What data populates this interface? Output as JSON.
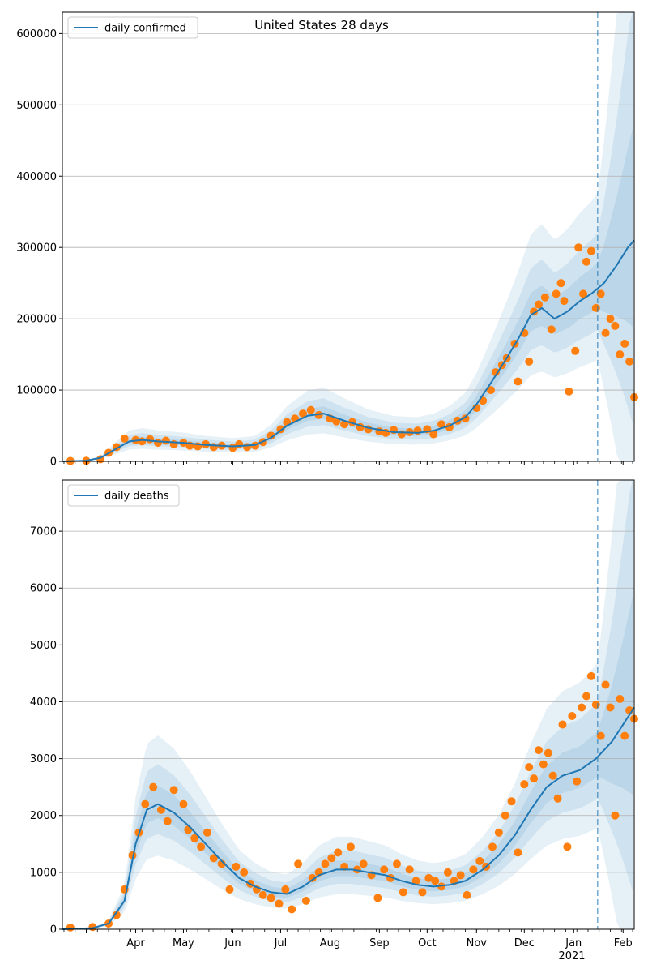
{
  "figure": {
    "title": "United States 28 days",
    "colors": {
      "model_line": "#1f77b4",
      "band": "#1f77b4",
      "observations": "#ff7f0e",
      "forecast_marker": "#1f77b4",
      "grid": "#b0b0b0"
    }
  },
  "chart_data": [
    {
      "type": "line",
      "name": "confirmed-panel",
      "x_type": "date",
      "xlim": [
        "2020-02-15",
        "2021-02-08"
      ],
      "ylim": [
        0,
        630000
      ],
      "yticks": [
        0,
        100000,
        200000,
        300000,
        400000,
        500000,
        600000
      ],
      "grid": "horizontal",
      "legend_position": "top-left",
      "forecast_start": "2021-01-16",
      "series": [
        {
          "name": "daily confirmed",
          "kind": "line",
          "x": [
            "2020-02-15",
            "2020-03-01",
            "2020-03-10",
            "2020-03-20",
            "2020-03-28",
            "2020-04-05",
            "2020-04-15",
            "2020-05-01",
            "2020-05-15",
            "2020-06-01",
            "2020-06-15",
            "2020-06-25",
            "2020-07-05",
            "2020-07-18",
            "2020-07-28",
            "2020-08-10",
            "2020-08-25",
            "2020-09-10",
            "2020-09-25",
            "2020-10-05",
            "2020-10-15",
            "2020-10-25",
            "2020-11-01",
            "2020-11-10",
            "2020-11-20",
            "2020-11-28",
            "2020-12-05",
            "2020-12-12",
            "2020-12-20",
            "2020-12-28",
            "2021-01-05",
            "2021-01-12",
            "2021-01-20",
            "2021-01-28",
            "2021-02-04",
            "2021-02-08"
          ],
          "y": [
            0,
            1000,
            5000,
            18000,
            28000,
            30000,
            28000,
            26000,
            23000,
            21000,
            23000,
            33000,
            50000,
            64000,
            67000,
            57000,
            47000,
            41000,
            40000,
            43000,
            50000,
            62000,
            80000,
            110000,
            145000,
            175000,
            205000,
            215000,
            200000,
            210000,
            225000,
            235000,
            250000,
            275000,
            300000,
            310000
          ]
        },
        {
          "name": "",
          "kind": "scatter",
          "x": [
            "2020-02-20",
            "2020-03-01",
            "2020-03-10",
            "2020-03-15",
            "2020-03-20",
            "2020-03-25",
            "2020-04-01",
            "2020-04-05",
            "2020-04-10",
            "2020-04-15",
            "2020-04-20",
            "2020-04-25",
            "2020-05-01",
            "2020-05-05",
            "2020-05-10",
            "2020-05-15",
            "2020-05-20",
            "2020-05-25",
            "2020-06-01",
            "2020-06-05",
            "2020-06-10",
            "2020-06-15",
            "2020-06-20",
            "2020-06-25",
            "2020-07-01",
            "2020-07-05",
            "2020-07-10",
            "2020-07-15",
            "2020-07-20",
            "2020-07-25",
            "2020-08-01",
            "2020-08-05",
            "2020-08-10",
            "2020-08-15",
            "2020-08-20",
            "2020-08-25",
            "2020-09-01",
            "2020-09-05",
            "2020-09-10",
            "2020-09-15",
            "2020-09-20",
            "2020-09-25",
            "2020-10-01",
            "2020-10-05",
            "2020-10-10",
            "2020-10-15",
            "2020-10-20",
            "2020-10-25",
            "2020-11-01",
            "2020-11-05",
            "2020-11-10",
            "2020-11-13",
            "2020-11-17",
            "2020-11-20",
            "2020-11-25",
            "2020-11-27",
            "2020-12-01",
            "2020-12-04",
            "2020-12-07",
            "2020-12-10",
            "2020-12-14",
            "2020-12-18",
            "2020-12-21",
            "2020-12-24",
            "2020-12-26",
            "2020-12-29",
            "2021-01-02",
            "2021-01-04",
            "2021-01-07",
            "2021-01-09",
            "2021-01-12",
            "2021-01-15",
            "2021-01-18",
            "2021-01-21",
            "2021-01-24",
            "2021-01-27",
            "2021-01-30",
            "2021-02-02",
            "2021-02-05",
            "2021-02-08"
          ],
          "y": [
            500,
            800,
            3000,
            12000,
            20000,
            32000,
            30000,
            28000,
            31000,
            26000,
            29000,
            24000,
            26000,
            22000,
            21000,
            24000,
            20000,
            22000,
            19000,
            24000,
            20000,
            22000,
            27000,
            36000,
            45000,
            55000,
            60000,
            67000,
            72000,
            65000,
            60000,
            56000,
            52000,
            55000,
            48000,
            45000,
            42000,
            40000,
            44000,
            38000,
            41000,
            43000,
            45000,
            38000,
            52000,
            48000,
            57000,
            60000,
            75000,
            85000,
            100000,
            125000,
            135000,
            145000,
            165000,
            112000,
            180000,
            140000,
            210000,
            220000,
            230000,
            185000,
            235000,
            250000,
            225000,
            98000,
            155000,
            300000,
            235000,
            280000,
            295000,
            215000,
            235000,
            180000,
            200000,
            190000,
            150000,
            165000,
            140000,
            90000
          ]
        }
      ]
    },
    {
      "type": "line",
      "name": "deaths-panel",
      "x_type": "date",
      "xlim": [
        "2020-02-15",
        "2021-02-08"
      ],
      "ylim": [
        0,
        7900
      ],
      "yticks": [
        0,
        1000,
        2000,
        3000,
        4000,
        5000,
        6000,
        7000
      ],
      "grid": "horizontal",
      "legend_position": "top-left",
      "forecast_start": "2021-01-16",
      "xticks": [
        {
          "x": "2020-04-01",
          "label": "Apr"
        },
        {
          "x": "2020-05-01",
          "label": "May"
        },
        {
          "x": "2020-06-01",
          "label": "Jun"
        },
        {
          "x": "2020-07-01",
          "label": "Jul"
        },
        {
          "x": "2020-08-01",
          "label": "Aug"
        },
        {
          "x": "2020-09-01",
          "label": "Sep"
        },
        {
          "x": "2020-10-01",
          "label": "Oct"
        },
        {
          "x": "2020-11-01",
          "label": "Nov"
        },
        {
          "x": "2020-12-01",
          "label": "Dec"
        },
        {
          "x": "2021-01-01",
          "label": "Jan"
        },
        {
          "x": "2021-02-01",
          "label": "Feb"
        }
      ],
      "year_label": "2021",
      "series": [
        {
          "name": "daily deaths",
          "kind": "line",
          "x": [
            "2020-02-15",
            "2020-03-05",
            "2020-03-15",
            "2020-03-25",
            "2020-04-01",
            "2020-04-08",
            "2020-04-15",
            "2020-04-25",
            "2020-05-05",
            "2020-05-15",
            "2020-05-25",
            "2020-06-05",
            "2020-06-15",
            "2020-06-25",
            "2020-07-05",
            "2020-07-15",
            "2020-07-25",
            "2020-08-05",
            "2020-08-15",
            "2020-08-25",
            "2020-09-05",
            "2020-09-15",
            "2020-09-25",
            "2020-10-05",
            "2020-10-15",
            "2020-10-25",
            "2020-11-05",
            "2020-11-15",
            "2020-11-25",
            "2020-12-05",
            "2020-12-15",
            "2020-12-25",
            "2021-01-05",
            "2021-01-15",
            "2021-01-25",
            "2021-02-08"
          ],
          "y": [
            0,
            20,
            100,
            500,
            1500,
            2100,
            2200,
            2050,
            1800,
            1500,
            1200,
            900,
            750,
            650,
            620,
            750,
            950,
            1050,
            1050,
            1000,
            950,
            850,
            780,
            750,
            780,
            850,
            1050,
            1300,
            1650,
            2100,
            2500,
            2700,
            2800,
            3000,
            3300,
            3900
          ]
        },
        {
          "name": "",
          "kind": "scatter",
          "x": [
            "2020-02-20",
            "2020-03-05",
            "2020-03-15",
            "2020-03-20",
            "2020-03-25",
            "2020-03-30",
            "2020-04-03",
            "2020-04-07",
            "2020-04-12",
            "2020-04-17",
            "2020-04-21",
            "2020-04-25",
            "2020-05-01",
            "2020-05-04",
            "2020-05-08",
            "2020-05-12",
            "2020-05-16",
            "2020-05-20",
            "2020-05-25",
            "2020-05-30",
            "2020-06-03",
            "2020-06-08",
            "2020-06-12",
            "2020-06-16",
            "2020-06-20",
            "2020-06-25",
            "2020-06-30",
            "2020-07-04",
            "2020-07-08",
            "2020-07-12",
            "2020-07-17",
            "2020-07-21",
            "2020-07-25",
            "2020-07-29",
            "2020-08-02",
            "2020-08-06",
            "2020-08-10",
            "2020-08-14",
            "2020-08-18",
            "2020-08-22",
            "2020-08-27",
            "2020-08-31",
            "2020-09-04",
            "2020-09-08",
            "2020-09-12",
            "2020-09-16",
            "2020-09-20",
            "2020-09-24",
            "2020-09-28",
            "2020-10-02",
            "2020-10-06",
            "2020-10-10",
            "2020-10-14",
            "2020-10-18",
            "2020-10-22",
            "2020-10-26",
            "2020-10-30",
            "2020-11-03",
            "2020-11-07",
            "2020-11-11",
            "2020-11-15",
            "2020-11-19",
            "2020-11-23",
            "2020-11-27",
            "2020-12-01",
            "2020-12-04",
            "2020-12-07",
            "2020-12-10",
            "2020-12-13",
            "2020-12-16",
            "2020-12-19",
            "2020-12-22",
            "2020-12-25",
            "2020-12-28",
            "2020-12-31",
            "2021-01-03",
            "2021-01-06",
            "2021-01-09",
            "2021-01-12",
            "2021-01-15",
            "2021-01-18",
            "2021-01-21",
            "2021-01-24",
            "2021-01-27",
            "2021-01-30",
            "2021-02-02",
            "2021-02-05",
            "2021-02-08"
          ],
          "y": [
            30,
            40,
            100,
            250,
            700,
            1300,
            1700,
            2200,
            2500,
            2100,
            1900,
            2450,
            2200,
            1750,
            1600,
            1450,
            1700,
            1250,
            1150,
            700,
            1100,
            1000,
            800,
            700,
            600,
            550,
            450,
            700,
            350,
            1150,
            500,
            900,
            1000,
            1150,
            1250,
            1350,
            1100,
            1450,
            1050,
            1150,
            950,
            550,
            1050,
            900,
            1150,
            650,
            1050,
            850,
            650,
            900,
            850,
            750,
            1000,
            850,
            950,
            600,
            1050,
            1200,
            1100,
            1450,
            1700,
            2000,
            2250,
            1350,
            2550,
            2850,
            2650,
            3150,
            2900,
            3100,
            2700,
            2300,
            3600,
            1450,
            3750,
            2600,
            3900,
            4100,
            4450,
            3950,
            3400,
            4300,
            3900,
            2000,
            4050,
            3400,
            3850,
            3700
          ]
        }
      ]
    }
  ]
}
